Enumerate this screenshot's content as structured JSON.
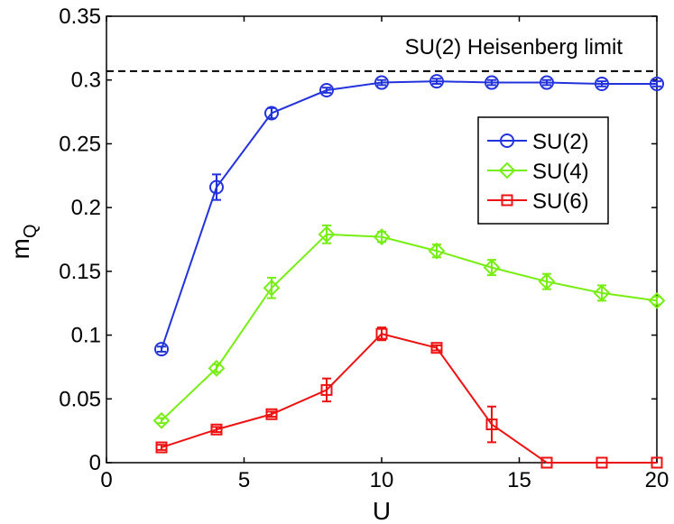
{
  "chart_data": {
    "type": "line",
    "title": "",
    "xlabel": "U",
    "ylabel": "m",
    "ylabel_subscript": "Q",
    "xlim": [
      0,
      20
    ],
    "ylim": [
      0,
      0.35
    ],
    "xticks": [
      0,
      5,
      10,
      15,
      20
    ],
    "xtick_labels": [
      "0",
      "5",
      "10",
      "15",
      "20"
    ],
    "yticks": [
      0,
      0.05,
      0.1,
      0.15,
      0.2,
      0.25,
      0.3,
      0.35
    ],
    "ytick_labels": [
      "0",
      "0.05",
      "0.1",
      "0.15",
      "0.2",
      "0.25",
      "0.3",
      "0.35"
    ],
    "grid": false,
    "legend_position": "top-right",
    "reference_line": {
      "label": "SU(2) Heisenberg limit",
      "y": 0.307,
      "style": "dashed",
      "color": "#000000"
    },
    "series": [
      {
        "name": "SU(2)",
        "color": "#2233dd",
        "marker": "circle",
        "x": [
          2,
          4,
          6,
          8,
          10,
          12,
          14,
          16,
          18,
          20
        ],
        "y": [
          0.089,
          0.216,
          0.274,
          0.292,
          0.298,
          0.299,
          0.298,
          0.298,
          0.297,
          0.297
        ],
        "err": [
          0.002,
          0.01,
          0.004,
          0.002,
          0.002,
          0.002,
          0.002,
          0.002,
          0.002,
          0.002
        ]
      },
      {
        "name": "SU(4)",
        "color": "#77ee11",
        "marker": "diamond",
        "x": [
          2,
          4,
          6,
          8,
          10,
          12,
          14,
          16,
          18,
          20
        ],
        "y": [
          0.033,
          0.074,
          0.137,
          0.179,
          0.177,
          0.166,
          0.153,
          0.142,
          0.133,
          0.127
        ],
        "err": [
          0.002,
          0.003,
          0.008,
          0.007,
          0.004,
          0.005,
          0.006,
          0.006,
          0.006,
          0.003
        ]
      },
      {
        "name": "SU(6)",
        "color": "#ee1111",
        "marker": "square",
        "x": [
          2,
          4,
          6,
          8,
          10,
          12,
          14,
          16,
          18,
          20
        ],
        "y": [
          0.012,
          0.026,
          0.038,
          0.057,
          0.101,
          0.09,
          0.03,
          0.0,
          0.0,
          0.0
        ],
        "err": [
          0.002,
          0.002,
          0.002,
          0.009,
          0.005,
          0.002,
          0.014,
          0.0,
          0.0,
          0.0
        ]
      }
    ]
  }
}
